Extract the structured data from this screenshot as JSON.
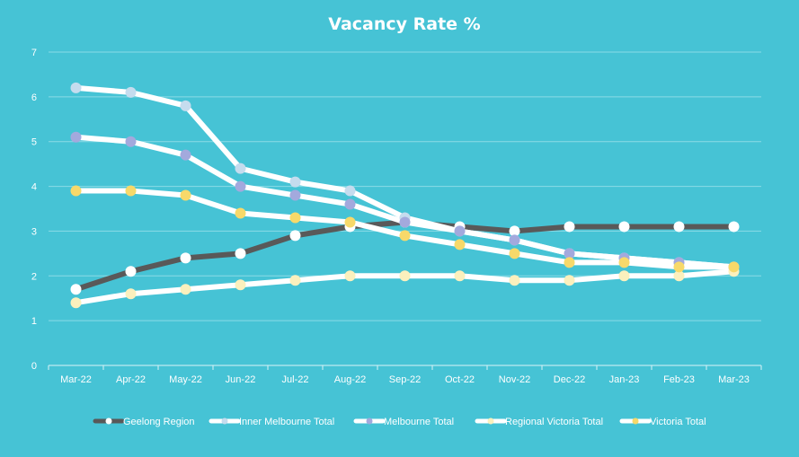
{
  "chart_data": {
    "type": "line",
    "title": "Vacancy Rate %",
    "xlabel": "",
    "ylabel": "",
    "ylim": [
      0,
      7
    ],
    "yticks": [
      "0",
      "1",
      "2",
      "3",
      "4",
      "5",
      "6",
      "7"
    ],
    "grid": true,
    "legend_position": "bottom",
    "categories": [
      "Mar-22",
      "Apr-22",
      "May-22",
      "Jun-22",
      "Jul-22",
      "Aug-22",
      "Sep-22",
      "Oct-22",
      "Nov-22",
      "Dec-22",
      "Jan-23",
      "Feb-23",
      "Mar-23"
    ],
    "series": [
      {
        "name": "Geelong Region",
        "line_color": "#595959",
        "marker_color": "#ffffff",
        "values": [
          1.7,
          2.1,
          2.4,
          2.5,
          2.9,
          3.1,
          3.2,
          3.1,
          3.0,
          3.1,
          3.1,
          3.1,
          3.1
        ]
      },
      {
        "name": "Inner Melbourne Total",
        "line_color": "#ffffff",
        "marker_color": "#c5dcee",
        "values": [
          6.2,
          6.1,
          5.8,
          4.4,
          4.1,
          3.9,
          3.3,
          3.0,
          2.8,
          2.5,
          2.4,
          2.3,
          2.2
        ]
      },
      {
        "name": "Melbourne Total",
        "line_color": "#ffffff",
        "marker_color": "#a3a9dd",
        "values": [
          5.1,
          5.0,
          4.7,
          4.0,
          3.8,
          3.6,
          3.2,
          3.0,
          2.8,
          2.5,
          2.4,
          2.3,
          2.2
        ]
      },
      {
        "name": "Regional Victoria Total",
        "line_color": "#ffffff",
        "marker_color": "#fbf0bd",
        "values": [
          1.4,
          1.6,
          1.7,
          1.8,
          1.9,
          2.0,
          2.0,
          2.0,
          1.9,
          1.9,
          2.0,
          2.0,
          2.1
        ]
      },
      {
        "name": "Victoria Total",
        "line_color": "#ffffff",
        "marker_color": "#f7d96a",
        "values": [
          3.9,
          3.9,
          3.8,
          3.4,
          3.3,
          3.2,
          2.9,
          2.7,
          2.5,
          2.3,
          2.3,
          2.2,
          2.2
        ]
      }
    ]
  },
  "colors": {
    "background": "#46c3d5",
    "gridline": "#8bdbe6",
    "axis": "#d9f3f7",
    "text": "#ffffff"
  }
}
